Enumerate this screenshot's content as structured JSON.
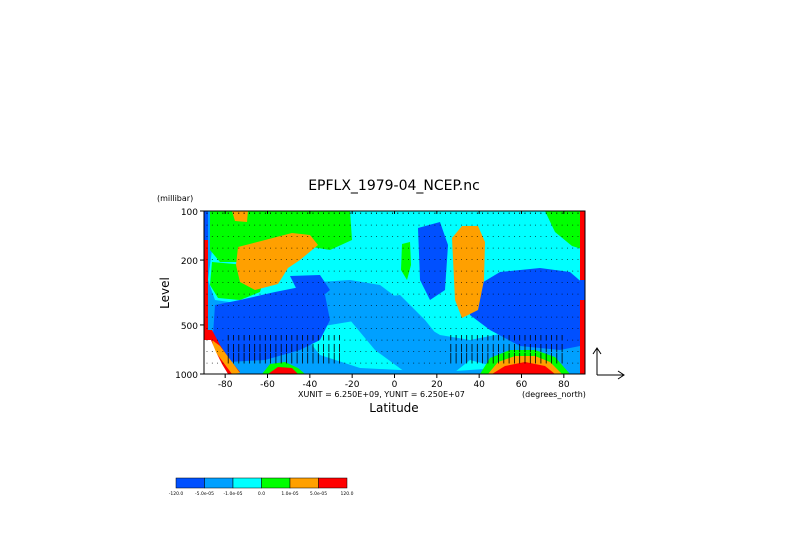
{
  "chart_data": {
    "type": "heatmap",
    "title": "EPFLX_1979-04_NCEP.nc",
    "xlabel": "Latitude",
    "ylabel": "Level",
    "x_units": "(degrees_north)",
    "y_units": "(millibar)",
    "unit_note": "XUNIT = 6.250E+09, YUNIT = 6.250E+07",
    "xlim": [
      -90,
      90
    ],
    "ylim": [
      1000,
      100
    ],
    "y_scale": "log",
    "x_ticks": [
      -80,
      -60,
      -40,
      -20,
      0,
      20,
      40,
      60,
      80
    ],
    "x_tick_labels": [
      "-80",
      "-60",
      "-40",
      "-20",
      "0",
      "20",
      "40",
      "60",
      "80"
    ],
    "y_ticks": [
      100,
      200,
      500,
      1000
    ],
    "y_tick_labels": [
      "100",
      "200",
      "500",
      "1000"
    ],
    "overlay": "EP flux vectors (arrows)",
    "colorbar": {
      "colors": [
        "#0050ff",
        "#00a0ff",
        "#00ffff",
        "#00ff00",
        "#ffa000",
        "#ff0000"
      ],
      "labels": [
        "-120.0",
        "-5.0e-05",
        "-1.0e-05",
        "0.0",
        "1.0e-05",
        "5.0e-05",
        "120.0"
      ]
    }
  }
}
